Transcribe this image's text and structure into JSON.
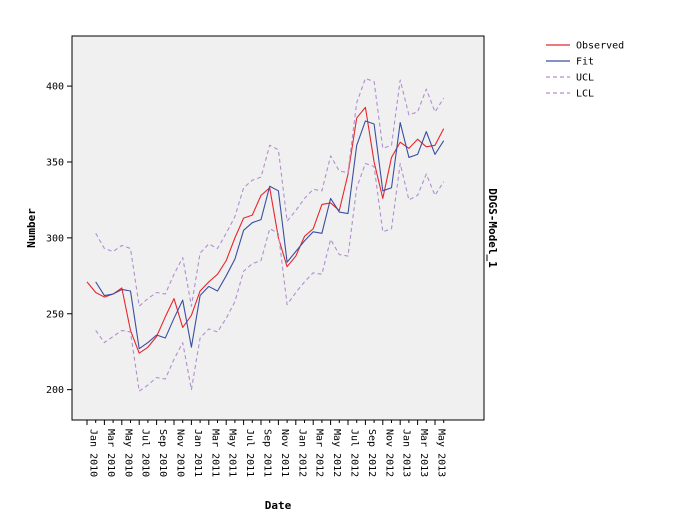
{
  "chart_data": {
    "type": "line",
    "xlabel": "Date",
    "ylabel": "Number",
    "panel_label": "DDGS-Model_1",
    "ylim": [
      180,
      433
    ],
    "yticks": [
      200,
      250,
      300,
      350,
      400
    ],
    "x_tick_labels": [
      "Jan 2010",
      "Mar 2010",
      "May 2010",
      "Jul 2010",
      "Sep 2010",
      "Nov 2010",
      "Jan 2011",
      "Mar 2011",
      "May 2011",
      "Jul 2011",
      "Sep 2011",
      "Nov 2011",
      "Jan 2012",
      "Mar 2012",
      "May 2012",
      "Jul 2012",
      "Sep 2012",
      "Nov 2012",
      "Jan 2013",
      "Mar 2013",
      "May 2013"
    ],
    "x": [
      "2010-01",
      "2010-02",
      "2010-03",
      "2010-04",
      "2010-05",
      "2010-06",
      "2010-07",
      "2010-08",
      "2010-09",
      "2010-10",
      "2010-11",
      "2010-12",
      "2011-01",
      "2011-02",
      "2011-03",
      "2011-04",
      "2011-05",
      "2011-06",
      "2011-07",
      "2011-08",
      "2011-09",
      "2011-10",
      "2011-11",
      "2011-12",
      "2012-01",
      "2012-02",
      "2012-03",
      "2012-04",
      "2012-05",
      "2012-06",
      "2012-07",
      "2012-08",
      "2012-09",
      "2012-10",
      "2012-11",
      "2012-12",
      "2013-01",
      "2013-02",
      "2013-03",
      "2013-04",
      "2013-05",
      "2013-06"
    ],
    "legend_position": "top-right",
    "series": [
      {
        "name": "Observed",
        "color": "#e8262e",
        "dash": false,
        "values": [
          271,
          264,
          261,
          263,
          267,
          239,
          224,
          228,
          235,
          248,
          260,
          241,
          249,
          265,
          271,
          276,
          285,
          300,
          313,
          315,
          328,
          333,
          300,
          281,
          288,
          301,
          306,
          322,
          323,
          318,
          342,
          379,
          386,
          350,
          326,
          353,
          363,
          359,
          365,
          360,
          361,
          372
        ]
      },
      {
        "name": "Fit",
        "color": "#3b4fa0",
        "dash": false,
        "values": [
          null,
          271,
          262,
          263,
          266,
          265,
          227,
          231,
          236,
          234,
          247,
          259,
          228,
          262,
          268,
          265,
          275,
          286,
          305,
          310,
          312,
          334,
          331,
          284,
          291,
          298,
          304,
          303,
          326,
          317,
          316,
          361,
          377,
          375,
          331,
          333,
          376,
          353,
          355,
          370,
          355,
          364
        ]
      },
      {
        "name": "UCL",
        "color": "#b08fd0",
        "dash": true,
        "values": [
          null,
          303,
          293,
          291,
          295,
          293,
          255,
          260,
          264,
          263,
          276,
          287,
          255,
          290,
          296,
          293,
          303,
          314,
          333,
          338,
          340,
          361,
          358,
          311,
          318,
          326,
          332,
          331,
          354,
          344,
          343,
          389,
          405,
          403,
          359,
          361,
          404,
          381,
          383,
          398,
          383,
          392
        ]
      },
      {
        "name": "LCL",
        "color": "#b08fd0",
        "dash": true,
        "values": [
          null,
          239,
          231,
          235,
          239,
          238,
          199,
          203,
          208,
          207,
          220,
          231,
          200,
          234,
          240,
          238,
          247,
          258,
          278,
          283,
          285,
          306,
          303,
          256,
          264,
          271,
          277,
          276,
          299,
          289,
          288,
          333,
          349,
          347,
          304,
          306,
          349,
          325,
          328,
          342,
          328,
          337
        ]
      }
    ]
  }
}
